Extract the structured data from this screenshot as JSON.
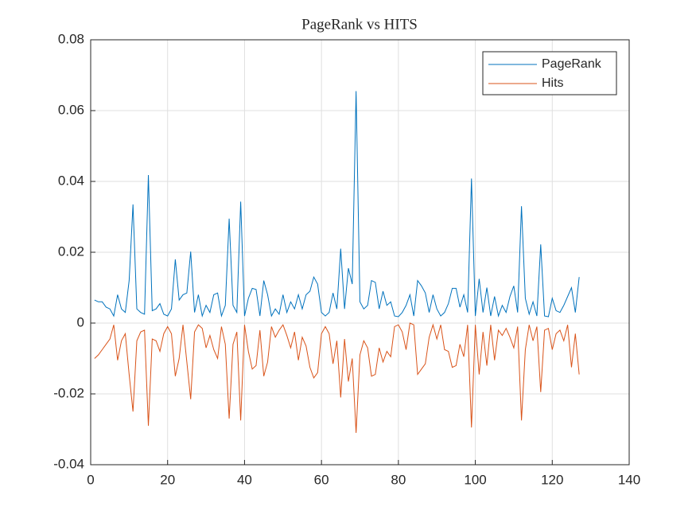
{
  "chart_data": {
    "type": "line",
    "title": "PageRank vs HITS",
    "x": [
      1,
      2,
      3,
      4,
      5,
      6,
      7,
      8,
      9,
      10,
      11,
      12,
      13,
      14,
      15,
      16,
      17,
      18,
      19,
      20,
      21,
      22,
      23,
      24,
      25,
      26,
      27,
      28,
      29,
      30,
      31,
      32,
      33,
      34,
      35,
      36,
      37,
      38,
      39,
      40,
      41,
      42,
      43,
      44,
      45,
      46,
      47,
      48,
      49,
      50,
      51,
      52,
      53,
      54,
      55,
      56,
      57,
      58,
      59,
      60,
      61,
      62,
      63,
      64,
      65,
      66,
      67,
      68,
      69,
      70,
      71,
      72,
      73,
      74,
      75,
      76,
      77,
      78,
      79,
      80,
      81,
      82,
      83,
      84,
      85,
      86,
      87,
      88,
      89,
      90,
      91,
      92,
      93,
      94,
      95,
      96,
      97,
      98,
      99,
      100,
      101,
      102,
      103,
      104,
      105,
      106,
      107,
      108,
      109,
      110,
      111,
      112,
      113,
      114,
      115,
      116,
      117,
      118,
      119,
      120,
      121,
      122,
      123,
      124,
      125,
      126,
      127
    ],
    "series": [
      {
        "name": "PageRank",
        "color": "#0072BD",
        "values": [
          0.0065,
          0.006,
          0.006,
          0.0045,
          0.004,
          0.002,
          0.008,
          0.004,
          0.003,
          0.012,
          0.0335,
          0.004,
          0.003,
          0.0025,
          0.0418,
          0.0035,
          0.004,
          0.0055,
          0.0025,
          0.002,
          0.004,
          0.018,
          0.0065,
          0.008,
          0.0085,
          0.0202,
          0.003,
          0.008,
          0.002,
          0.005,
          0.003,
          0.008,
          0.0085,
          0.002,
          0.005,
          0.0295,
          0.005,
          0.003,
          0.0343,
          0.002,
          0.007,
          0.0098,
          0.0095,
          0.002,
          0.012,
          0.008,
          0.002,
          0.004,
          0.0025,
          0.008,
          0.003,
          0.006,
          0.004,
          0.008,
          0.004,
          0.008,
          0.009,
          0.013,
          0.011,
          0.003,
          0.002,
          0.003,
          0.0085,
          0.004,
          0.021,
          0.004,
          0.0155,
          0.011,
          0.0655,
          0.006,
          0.004,
          0.005,
          0.012,
          0.0115,
          0.004,
          0.009,
          0.005,
          0.006,
          0.002,
          0.0018,
          0.003,
          0.005,
          0.008,
          0.002,
          0.012,
          0.0105,
          0.0085,
          0.003,
          0.008,
          0.004,
          0.002,
          0.003,
          0.0055,
          0.0098,
          0.0098,
          0.0045,
          0.008,
          0.003,
          0.0408,
          0.002,
          0.0125,
          0.003,
          0.01,
          0.002,
          0.0075,
          0.002,
          0.005,
          0.003,
          0.0075,
          0.0105,
          0.003,
          0.033,
          0.007,
          0.0025,
          0.006,
          0.002,
          0.0222,
          0.002,
          0.0018,
          0.007,
          0.0035,
          0.003,
          0.005,
          0.0075,
          0.01,
          0.003,
          0.013
        ]
      },
      {
        "name": "Hits",
        "color": "#D95319",
        "values": [
          -0.01,
          -0.009,
          -0.0075,
          -0.006,
          -0.0045,
          -0.0005,
          -0.0105,
          -0.005,
          -0.003,
          -0.0145,
          -0.025,
          -0.005,
          -0.0025,
          -0.002,
          -0.029,
          -0.0045,
          -0.005,
          -0.008,
          -0.003,
          -0.001,
          -0.003,
          -0.015,
          -0.01,
          -0.0005,
          -0.011,
          -0.0215,
          -0.0025,
          -0.0005,
          -0.0015,
          -0.007,
          -0.0035,
          -0.0075,
          -0.01,
          -0.001,
          -0.006,
          -0.027,
          -0.006,
          -0.0025,
          -0.0275,
          -0.0005,
          -0.008,
          -0.013,
          -0.012,
          -0.002,
          -0.015,
          -0.011,
          -0.001,
          -0.004,
          -0.002,
          -0.0005,
          -0.0035,
          -0.007,
          -0.0025,
          -0.0105,
          -0.004,
          -0.0065,
          -0.0125,
          -0.0155,
          -0.014,
          -0.003,
          -0.001,
          -0.003,
          -0.0115,
          -0.005,
          -0.021,
          -0.0045,
          -0.0165,
          -0.01,
          -0.031,
          -0.009,
          -0.005,
          -0.007,
          -0.015,
          -0.0145,
          -0.007,
          -0.011,
          -0.008,
          -0.0095,
          -0.001,
          -0.0005,
          -0.0025,
          -0.0075,
          0,
          -0.0005,
          -0.0145,
          -0.013,
          -0.0115,
          -0.004,
          -0.0005,
          -0.0045,
          -0.0005,
          -0.0075,
          -0.008,
          -0.0125,
          -0.012,
          -0.006,
          -0.0095,
          -0.0005,
          -0.0295,
          -0.0005,
          -0.0145,
          -0.0025,
          -0.012,
          -0.0005,
          -0.0105,
          -0.002,
          -0.0035,
          -0.0015,
          -0.004,
          -0.007,
          -0.001,
          -0.0275,
          -0.0075,
          -0.0005,
          -0.005,
          -0.001,
          -0.0195,
          -0.002,
          -0.0015,
          -0.0075,
          -0.003,
          -0.002,
          -0.005,
          -0.0005,
          -0.0125,
          -0.003,
          -0.0145
        ]
      }
    ],
    "xlim": [
      0,
      140
    ],
    "xticks": [
      0,
      20,
      40,
      60,
      80,
      100,
      120,
      140
    ],
    "ylim": [
      -0.04,
      0.08
    ],
    "yticks": [
      -0.04,
      -0.02,
      0,
      0.02,
      0.04,
      0.06,
      0.08
    ],
    "grid": true,
    "legend": "northeast"
  }
}
